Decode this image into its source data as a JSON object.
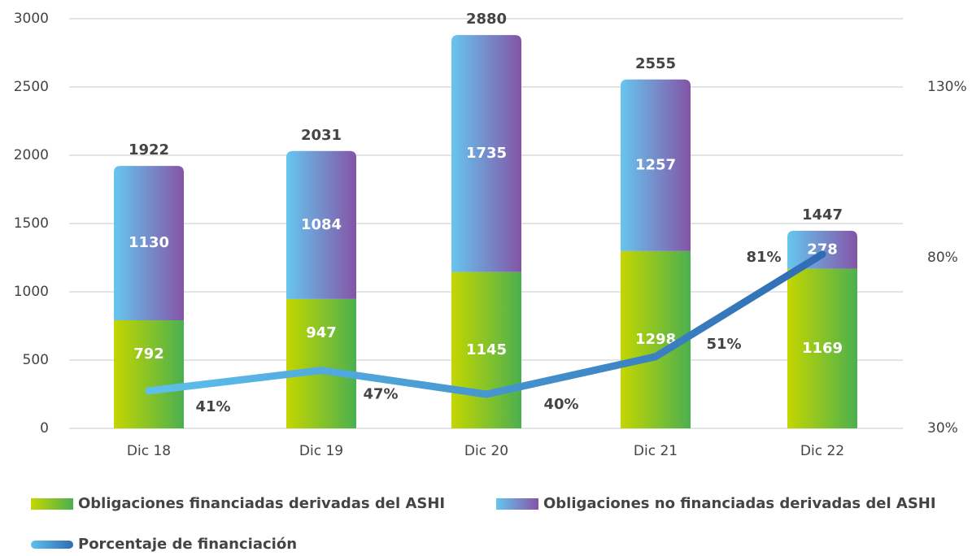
{
  "chart_data": {
    "type": "stacked-bar-line",
    "categories": [
      "Dic 18",
      "Dic 19",
      "Dic 20",
      "Dic 21",
      "Dic 22"
    ],
    "series": [
      {
        "name": "Obligaciones financiadas derivadas del ASHI",
        "color": [
          "#c4d600",
          "#4bb04f"
        ],
        "values": [
          792,
          947,
          1145,
          1298,
          1169
        ]
      },
      {
        "name": "Obligaciones no financiadas derivadas del ASHI",
        "color": [
          "#66c6ef",
          "#8454a6"
        ],
        "values": [
          1130,
          1084,
          1735,
          1257,
          278
        ]
      },
      {
        "name": "Porcentaje de financiación",
        "color": [
          "#5ec0ec",
          "#2f6cb4"
        ],
        "axis": "y2",
        "type": "line",
        "values": [
          41,
          47,
          40,
          51,
          81
        ],
        "value_labels": [
          "41%",
          "47%",
          "40%",
          "51%",
          "81%"
        ]
      }
    ],
    "totals": [
      1922,
      2031,
      2880,
      2555,
      1447
    ],
    "ylim": [
      0,
      3000
    ],
    "yticks": [
      0,
      500,
      1000,
      1500,
      2000,
      2500,
      3000
    ],
    "y2lim": [
      30,
      150
    ],
    "y2ticks": [
      {
        "value": 30,
        "label": "30%"
      },
      {
        "value": 80,
        "label": "80%"
      },
      {
        "value": 130,
        "label": "130%"
      }
    ],
    "grid": true
  }
}
